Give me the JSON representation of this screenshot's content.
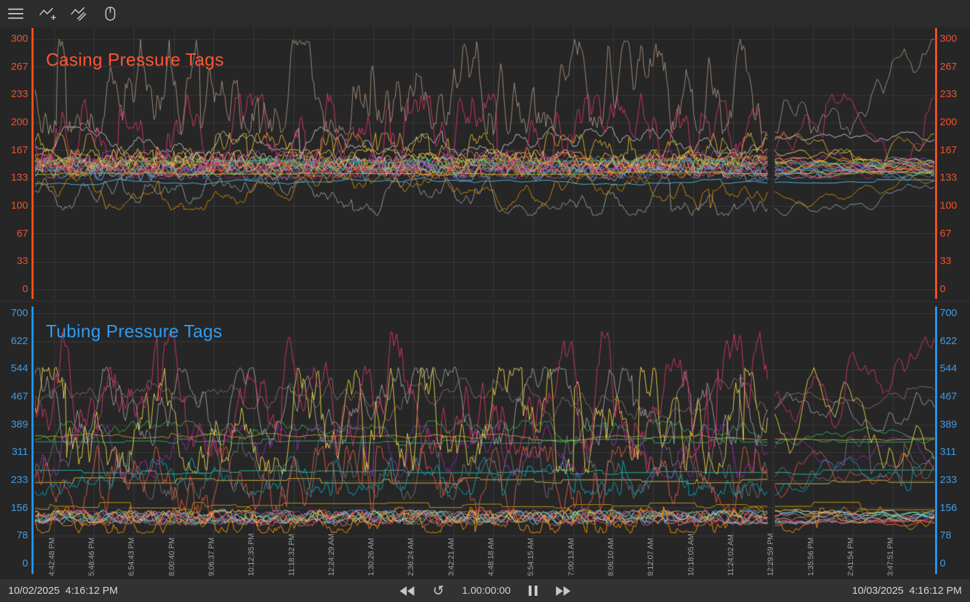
{
  "app": {
    "background": "#262626",
    "grid_color": "#3a3a3a"
  },
  "toolbar": {
    "icons": [
      {
        "name": "menu-icon"
      },
      {
        "name": "add-trend-icon"
      },
      {
        "name": "compare-trends-icon"
      },
      {
        "name": "mouse-mode-icon"
      }
    ]
  },
  "statusbar": {
    "start_datetime": "10/02/2025  4:16:12 PM",
    "end_datetime": "10/03/2025  4:16:12 PM",
    "duration": "1.00:00:00",
    "reset_glyph": "↺",
    "controls": [
      "step-back-button",
      "reset-button",
      "pause-button",
      "step-forward-button"
    ]
  },
  "chart_data": [
    {
      "type": "line",
      "id": "casing",
      "title": "Casing Pressure Tags",
      "title_color": "#ff5533",
      "axis_color": "#f4511e",
      "tick_color": "#ef5130",
      "ylim": [
        0,
        300
      ],
      "y_ticks": [
        "300",
        "267",
        "233",
        "200",
        "167",
        "133",
        "100",
        "67",
        "33",
        "0"
      ],
      "x_ticks": [],
      "series": [
        {
          "color": "#8D6E63",
          "lo": 133,
          "hi": 150,
          "v": 0.85
        },
        {
          "color": "#B0BEC5",
          "lo": 135,
          "hi": 155,
          "v": 0.9
        },
        {
          "color": "#E0E0E0",
          "lo": 140,
          "hi": 160,
          "v": 0.85
        },
        {
          "color": "#66BB6A",
          "lo": 138,
          "hi": 160,
          "v": 0.9
        },
        {
          "color": "#9CCC65",
          "lo": 142,
          "hi": 158,
          "v": 0.85
        },
        {
          "color": "#26A69A",
          "lo": 140,
          "hi": 158,
          "v": 0.8
        },
        {
          "color": "#4DD0E1",
          "lo": 136,
          "hi": 156,
          "v": 0.9
        },
        {
          "color": "#64B5F6",
          "lo": 130,
          "hi": 150,
          "v": 0.85
        },
        {
          "color": "#5C9DED",
          "lo": 133,
          "hi": 155,
          "v": 0.9
        },
        {
          "color": "#7E57C2",
          "lo": 138,
          "hi": 158,
          "v": 0.85
        },
        {
          "color": "#AB47BC",
          "lo": 142,
          "hi": 166,
          "v": 0.9
        },
        {
          "color": "#D81B60",
          "lo": 133,
          "hi": 157,
          "v": 0.9
        },
        {
          "color": "#F06292",
          "lo": 140,
          "hi": 162,
          "v": 0.9
        },
        {
          "color": "#EF5350",
          "lo": 136,
          "hi": 156,
          "v": 0.9
        },
        {
          "color": "#FF7043",
          "lo": 133,
          "hi": 153,
          "v": 0.9
        },
        {
          "color": "#FF9800",
          "lo": 138,
          "hi": 158,
          "v": 0.9
        },
        {
          "color": "#FFB74D",
          "lo": 145,
          "hi": 165,
          "v": 0.85
        },
        {
          "color": "#FFD54D",
          "lo": 148,
          "hi": 168,
          "v": 0.9
        },
        {
          "color": "#C0CA33",
          "lo": 137,
          "hi": 141,
          "v": 0.1,
          "st": true
        },
        {
          "color": "#2BB673",
          "lo": 151,
          "hi": 155,
          "v": 0.08,
          "st": true
        },
        {
          "color": "#4FC3F7",
          "lo": 125,
          "hi": 134,
          "v": 0.2
        },
        {
          "color": "#9AA0A6",
          "lo": 88,
          "hi": 135,
          "v": 0.45
        },
        {
          "color": "#D98E04",
          "lo": 95,
          "hi": 138,
          "v": 0.4
        },
        {
          "color": "#C9CDD1",
          "lo": 155,
          "hi": 195,
          "v": 0.4
        },
        {
          "color": "#E3B52C",
          "lo": 145,
          "hi": 188,
          "v": 0.8
        },
        {
          "color": "#D6366B",
          "lo": 140,
          "hi": 235,
          "v": 0.75
        },
        {
          "color": "#A8907C",
          "lo": 185,
          "hi": 300,
          "v": 0.8
        }
      ]
    },
    {
      "type": "line",
      "id": "tubing",
      "title": "Tubing Pressure Tags",
      "title_color": "#2e9bf2",
      "axis_color": "#2196f3",
      "tick_color": "#3e9ce9",
      "ylim": [
        0,
        700
      ],
      "y_ticks": [
        "700",
        "622",
        "544",
        "467",
        "389",
        "311",
        "233",
        "156",
        "78",
        "0"
      ],
      "x_ticks": [
        "4:42:48 PM",
        "5:48:46 PM",
        "6:54:43 PM",
        "8:00:40 PM",
        "9:06:37 PM",
        "10:12:35 PM",
        "11:18:32 PM",
        "12:24:29 AM",
        "1:30:26 AM",
        "2:36:24 AM",
        "3:42:21 AM",
        "4:48:18 AM",
        "5:54:15 AM",
        "7:00:13 AM",
        "8:06:10 AM",
        "9:12:07 AM",
        "10:18:05 AM",
        "11:24:02 AM",
        "12:29:59 PM",
        "1:35:56 PM",
        "2:41:54 PM",
        "3:47:51 PM"
      ],
      "series": [
        {
          "color": "#A1887F",
          "lo": 108,
          "hi": 140,
          "v": 0.8
        },
        {
          "color": "#B0BEC5",
          "lo": 112,
          "hi": 148,
          "v": 0.85
        },
        {
          "color": "#E0E0E0",
          "lo": 118,
          "hi": 150,
          "v": 0.8
        },
        {
          "color": "#81D4FA",
          "lo": 112,
          "hi": 145,
          "v": 0.85
        },
        {
          "color": "#42A5F5",
          "lo": 115,
          "hi": 150,
          "v": 0.85
        },
        {
          "color": "#4DD0E1",
          "lo": 110,
          "hi": 145,
          "v": 0.85
        },
        {
          "color": "#66BB6A",
          "lo": 115,
          "hi": 148,
          "v": 0.8
        },
        {
          "color": "#F06292",
          "lo": 112,
          "hi": 150,
          "v": 0.85
        },
        {
          "color": "#D81B60",
          "lo": 110,
          "hi": 148,
          "v": 0.85
        },
        {
          "color": "#FFD54D",
          "lo": 115,
          "hi": 152,
          "v": 0.85
        },
        {
          "color": "#FF7043",
          "lo": 105,
          "hi": 148,
          "v": 0.9
        },
        {
          "color": "#FF9800",
          "lo": 85,
          "hi": 160,
          "v": 0.9
        },
        {
          "color": "#D4A017",
          "lo": 150,
          "hi": 172,
          "v": 0.15,
          "st": true
        },
        {
          "color": "#E0C040",
          "lo": 222,
          "hi": 240,
          "v": 0.12,
          "st": true
        },
        {
          "color": "#00ACC1",
          "lo": 190,
          "hi": 300,
          "v": 0.6
        },
        {
          "color": "#26C6A2",
          "lo": 250,
          "hi": 262,
          "v": 0.08,
          "st": true
        },
        {
          "color": "#757575",
          "lo": 180,
          "hi": 360,
          "v": 0.6
        },
        {
          "color": "#9C27B0",
          "lo": 240,
          "hi": 390,
          "v": 0.55
        },
        {
          "color": "#C9A227",
          "lo": 340,
          "hi": 368,
          "v": 0.2
        },
        {
          "color": "#2BB673",
          "lo": 336,
          "hi": 352,
          "v": 0.08,
          "st": true
        },
        {
          "color": "#3CB054",
          "lo": 330,
          "hi": 400,
          "v": 0.5
        },
        {
          "color": "#E05C44",
          "lo": 140,
          "hi": 330,
          "v": 0.7
        },
        {
          "color": "#8D6E63",
          "lo": 400,
          "hi": 520,
          "v": 0.35
        },
        {
          "color": "#9E9E9E",
          "lo": 330,
          "hi": 550,
          "v": 0.6
        },
        {
          "color": "#E8D44D",
          "lo": 250,
          "hi": 550,
          "v": 0.65
        },
        {
          "color": "#D6366B",
          "lo": 300,
          "hi": 650,
          "v": 0.55
        }
      ]
    }
  ]
}
